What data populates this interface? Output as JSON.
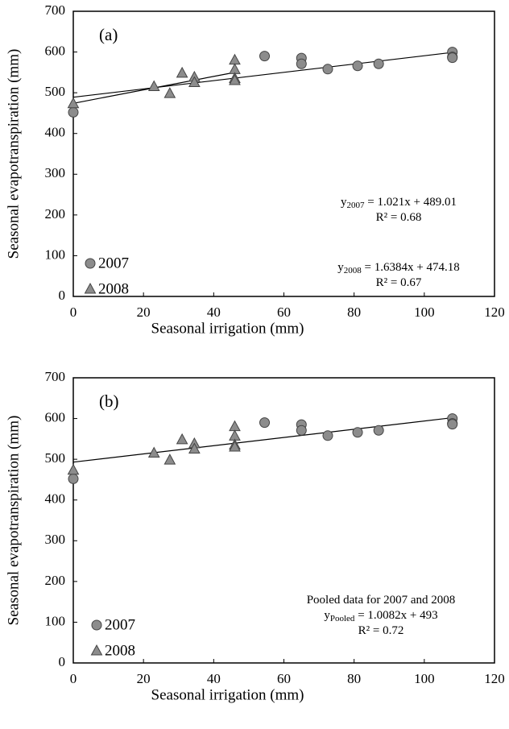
{
  "chart_data": [
    {
      "type": "scatter",
      "label": "(a)",
      "xlabel": "Seasonal irrigation (mm)",
      "ylabel": "Seasonal evapotranspiration (mm)",
      "xlim": [
        0,
        120
      ],
      "xticks": [
        0,
        20,
        40,
        60,
        80,
        100,
        120
      ],
      "ylim": [
        0,
        700
      ],
      "yticks": [
        0,
        100,
        200,
        300,
        400,
        500,
        600,
        700
      ],
      "series": [
        {
          "name": "2007",
          "marker": "circle",
          "color": "#8c8c8c",
          "x": [
            0,
            54.5,
            65,
            65,
            72.5,
            81,
            87,
            108,
            108,
            108
          ],
          "values": [
            452,
            590,
            585,
            571,
            558,
            566,
            571,
            600,
            588,
            586
          ]
        },
        {
          "name": "2008",
          "marker": "triangle",
          "color": "#8c8c8c",
          "x": [
            0,
            23,
            27.5,
            31,
            34.5,
            34.5,
            46,
            46,
            46,
            46
          ],
          "values": [
            473,
            515,
            498,
            548,
            538,
            525,
            580,
            557,
            535,
            530
          ]
        }
      ],
      "trendlines": [
        {
          "x": [
            0,
            108
          ],
          "values": [
            489,
            599
          ]
        },
        {
          "x": [
            0,
            46
          ],
          "values": [
            474,
            550
          ]
        }
      ],
      "annotations": [
        [
          [
            {
              "text": "y"
            },
            {
              "text": "2007",
              "sub": true
            },
            {
              "text": " = 1.021x + 489.01"
            }
          ],
          [
            {
              "text": "R² = 0.68"
            }
          ]
        ],
        [
          [
            {
              "text": "y"
            },
            {
              "text": "2008",
              "sub": true
            },
            {
              "text": " = 1.6384x + 474.18"
            }
          ],
          [
            {
              "text": "R² = 0.67"
            }
          ]
        ]
      ]
    },
    {
      "type": "scatter",
      "label": "(b)",
      "xlabel": "Seasonal irrigation (mm)",
      "ylabel": "Seasonal evapotranspiration (mm)",
      "xlim": [
        0,
        120
      ],
      "xticks": [
        0,
        20,
        40,
        60,
        80,
        100,
        120
      ],
      "ylim": [
        0,
        700
      ],
      "yticks": [
        0,
        100,
        200,
        300,
        400,
        500,
        600,
        700
      ],
      "series": [
        {
          "name": "2007",
          "marker": "circle",
          "color": "#8c8c8c",
          "x": [
            0,
            54.5,
            65,
            65,
            72.5,
            81,
            87,
            108,
            108,
            108
          ],
          "values": [
            452,
            590,
            585,
            571,
            558,
            566,
            571,
            600,
            588,
            586
          ]
        },
        {
          "name": "2008",
          "marker": "triangle",
          "color": "#8c8c8c",
          "x": [
            0,
            23,
            27.5,
            31,
            34.5,
            34.5,
            46,
            46,
            46,
            46
          ],
          "values": [
            473,
            515,
            498,
            548,
            538,
            525,
            580,
            557,
            535,
            530
          ]
        }
      ],
      "trendlines": [
        {
          "x": [
            0,
            108
          ],
          "values": [
            493,
            602
          ]
        }
      ],
      "annotations": [
        [
          [
            {
              "text": "Pooled data for 2007 and 2008"
            }
          ],
          [
            {
              "text": "y"
            },
            {
              "text": "Pooled",
              "sub": true
            },
            {
              "text": " = 1.0082x + 493"
            }
          ],
          [
            {
              "text": "R² = 0.72"
            }
          ]
        ]
      ]
    }
  ]
}
